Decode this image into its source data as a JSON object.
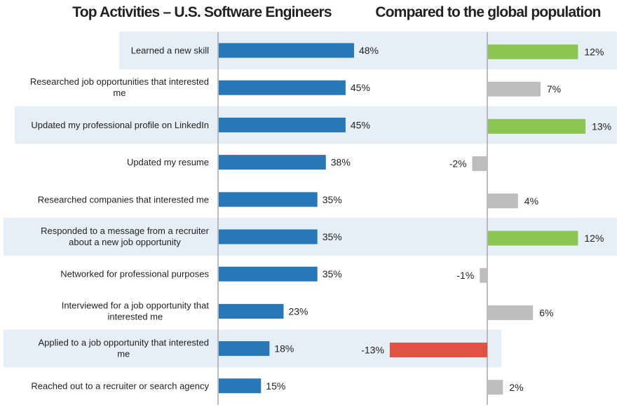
{
  "chart_data": [
    {
      "type": "bar",
      "orientation": "horizontal",
      "title": "Top Activities – U.S. Software Engineers",
      "categories": [
        "Learned a new skill",
        "Researched job opportunities that interested me",
        "Updated my professional profile on LinkedIn",
        "Updated my resume",
        "Researched companies that interested me",
        "Responded to a message from a recruiter about a new job opportunity",
        "Networked for professional purposes",
        "Interviewed for a job opportunity that interested me",
        "Applied to a job opportunity that interested me",
        "Reached out to a recruiter or search agency"
      ],
      "values": [
        48,
        45,
        45,
        38,
        35,
        35,
        35,
        23,
        18,
        15
      ],
      "data_labels": [
        "48%",
        "45%",
        "45%",
        "38%",
        "35%",
        "35%",
        "35%",
        "23%",
        "18%",
        "15%"
      ],
      "unit": "%",
      "highlighted_rows": [
        0,
        2,
        5,
        8
      ],
      "color": "#2878b8",
      "highlight_color": "#e6eff6"
    },
    {
      "type": "bar",
      "orientation": "horizontal",
      "title": "Compared to the global population",
      "values": [
        12,
        7,
        13,
        -2,
        4,
        12,
        -1,
        6,
        -13,
        2
      ],
      "data_labels": [
        "12%",
        "7%",
        "13%",
        "-2%",
        "4%",
        "12%",
        "-1%",
        "6%",
        "-13%",
        "2%"
      ],
      "unit": "%",
      "colors": {
        "above": "#8bc653",
        "neutral": "#bdbdbd",
        "below": "#df5244"
      },
      "bar_status": [
        "above",
        "neutral",
        "above",
        "neutral",
        "neutral",
        "above",
        "neutral",
        "neutral",
        "below",
        "neutral"
      ]
    }
  ]
}
